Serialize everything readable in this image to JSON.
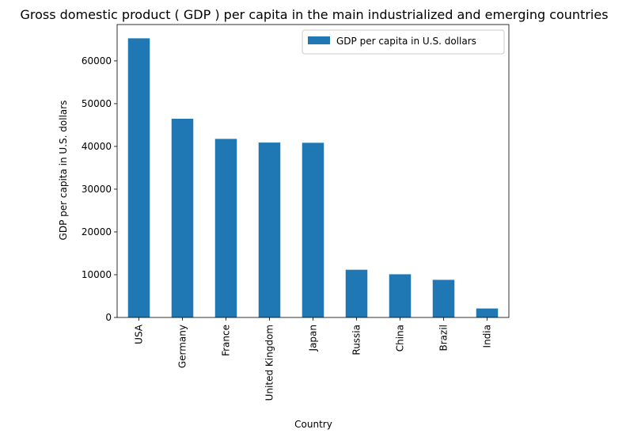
{
  "chart_data": {
    "type": "bar",
    "title": "Gross domestic product ( GDP ) per capita in the main industrialized and emerging countries",
    "xlabel": "Country",
    "ylabel": "GDP per capita in U.S. dollars",
    "categories": [
      "USA",
      "Germany",
      "France",
      "United Kingdom",
      "Japan",
      "Russia",
      "China",
      "Brazil",
      "India"
    ],
    "series": [
      {
        "name": "GDP per capita in U.S. dollars",
        "color": "#1f77b4",
        "values": [
          65280,
          46470,
          41760,
          40900,
          40850,
          11160,
          10100,
          8800,
          2100
        ]
      }
    ],
    "ylim": [
      0,
      68500
    ],
    "yticks": [
      0,
      10000,
      20000,
      30000,
      40000,
      50000,
      60000
    ],
    "grid": false,
    "legend_position": "top-right"
  }
}
